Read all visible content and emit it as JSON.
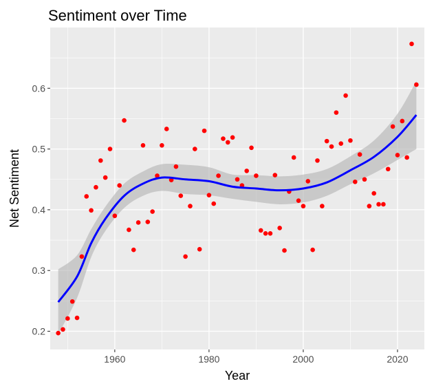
{
  "chart_data": {
    "type": "scatter",
    "title": "Sentiment over Time",
    "xlabel": "Year",
    "ylabel": "Net Sentiment",
    "xlim": [
      1946.3,
      2025.7
    ],
    "ylim": [
      0.17,
      0.7
    ],
    "x_ticks": [
      1960,
      1980,
      2000,
      2020
    ],
    "y_ticks": [
      0.2,
      0.3,
      0.4,
      0.5,
      0.6
    ],
    "x_tick_labels": [
      "1960",
      "1980",
      "2000",
      "2020"
    ],
    "y_tick_labels": [
      "0.2",
      "0.3",
      "0.4",
      "0.5",
      "0.6"
    ],
    "grid": true,
    "colors": {
      "points": "#ff0000",
      "smooth_line": "#0000ff",
      "confidence_band": "#b3b3b3",
      "panel_background": "#ebebeb",
      "grid": "#ffffff"
    },
    "points": [
      {
        "x": 1948,
        "y": 0.197
      },
      {
        "x": 1949,
        "y": 0.203
      },
      {
        "x": 1950,
        "y": 0.221
      },
      {
        "x": 1951,
        "y": 0.249
      },
      {
        "x": 1952,
        "y": 0.222
      },
      {
        "x": 1953,
        "y": 0.323
      },
      {
        "x": 1954,
        "y": 0.422
      },
      {
        "x": 1955,
        "y": 0.399
      },
      {
        "x": 1956,
        "y": 0.437
      },
      {
        "x": 1957,
        "y": 0.481
      },
      {
        "x": 1958,
        "y": 0.453
      },
      {
        "x": 1959,
        "y": 0.5
      },
      {
        "x": 1960,
        "y": 0.39
      },
      {
        "x": 1961,
        "y": 0.44
      },
      {
        "x": 1962,
        "y": 0.547
      },
      {
        "x": 1963,
        "y": 0.367
      },
      {
        "x": 1964,
        "y": 0.334
      },
      {
        "x": 1965,
        "y": 0.379
      },
      {
        "x": 1966,
        "y": 0.506
      },
      {
        "x": 1967,
        "y": 0.38
      },
      {
        "x": 1968,
        "y": 0.397
      },
      {
        "x": 1969,
        "y": 0.456
      },
      {
        "x": 1970,
        "y": 0.506
      },
      {
        "x": 1971,
        "y": 0.533
      },
      {
        "x": 1972,
        "y": 0.449
      },
      {
        "x": 1973,
        "y": 0.471
      },
      {
        "x": 1974,
        "y": 0.423
      },
      {
        "x": 1975,
        "y": 0.323
      },
      {
        "x": 1976,
        "y": 0.406
      },
      {
        "x": 1977,
        "y": 0.5
      },
      {
        "x": 1978,
        "y": 0.335
      },
      {
        "x": 1979,
        "y": 0.53
      },
      {
        "x": 1980,
        "y": 0.424
      },
      {
        "x": 1981,
        "y": 0.41
      },
      {
        "x": 1982,
        "y": 0.456
      },
      {
        "x": 1983,
        "y": 0.517
      },
      {
        "x": 1984,
        "y": 0.511
      },
      {
        "x": 1985,
        "y": 0.519
      },
      {
        "x": 1986,
        "y": 0.45
      },
      {
        "x": 1987,
        "y": 0.44
      },
      {
        "x": 1988,
        "y": 0.464
      },
      {
        "x": 1989,
        "y": 0.502
      },
      {
        "x": 1990,
        "y": 0.456
      },
      {
        "x": 1991,
        "y": 0.366
      },
      {
        "x": 1992,
        "y": 0.361
      },
      {
        "x": 1993,
        "y": 0.361
      },
      {
        "x": 1994,
        "y": 0.457
      },
      {
        "x": 1995,
        "y": 0.37
      },
      {
        "x": 1996,
        "y": 0.333
      },
      {
        "x": 1997,
        "y": 0.43
      },
      {
        "x": 1998,
        "y": 0.486
      },
      {
        "x": 1999,
        "y": 0.415
      },
      {
        "x": 2000,
        "y": 0.406
      },
      {
        "x": 2001,
        "y": 0.447
      },
      {
        "x": 2002,
        "y": 0.334
      },
      {
        "x": 2003,
        "y": 0.481
      },
      {
        "x": 2004,
        "y": 0.406
      },
      {
        "x": 2005,
        "y": 0.513
      },
      {
        "x": 2006,
        "y": 0.504
      },
      {
        "x": 2007,
        "y": 0.56
      },
      {
        "x": 2008,
        "y": 0.509
      },
      {
        "x": 2009,
        "y": 0.588
      },
      {
        "x": 2010,
        "y": 0.514
      },
      {
        "x": 2011,
        "y": 0.446
      },
      {
        "x": 2012,
        "y": 0.491
      },
      {
        "x": 2013,
        "y": 0.45
      },
      {
        "x": 2014,
        "y": 0.406
      },
      {
        "x": 2015,
        "y": 0.427
      },
      {
        "x": 2016,
        "y": 0.409
      },
      {
        "x": 2017,
        "y": 0.409
      },
      {
        "x": 2018,
        "y": 0.467
      },
      {
        "x": 2019,
        "y": 0.537
      },
      {
        "x": 2020,
        "y": 0.49
      },
      {
        "x": 2021,
        "y": 0.546
      },
      {
        "x": 2022,
        "y": 0.486
      },
      {
        "x": 2023,
        "y": 0.673
      },
      {
        "x": 2024,
        "y": 0.606
      }
    ],
    "smooth_fit": [
      {
        "x": 1948,
        "y": 0.248,
        "lower": 0.195,
        "upper": 0.302
      },
      {
        "x": 1952,
        "y": 0.29,
        "lower": 0.255,
        "upper": 0.325
      },
      {
        "x": 1955,
        "y": 0.345,
        "lower": 0.322,
        "upper": 0.368
      },
      {
        "x": 1958,
        "y": 0.385,
        "lower": 0.365,
        "upper": 0.405
      },
      {
        "x": 1962,
        "y": 0.423,
        "lower": 0.403,
        "upper": 0.443
      },
      {
        "x": 1966,
        "y": 0.443,
        "lower": 0.423,
        "upper": 0.463
      },
      {
        "x": 1970,
        "y": 0.453,
        "lower": 0.431,
        "upper": 0.475
      },
      {
        "x": 1975,
        "y": 0.45,
        "lower": 0.426,
        "upper": 0.474
      },
      {
        "x": 1980,
        "y": 0.447,
        "lower": 0.424,
        "upper": 0.47
      },
      {
        "x": 1985,
        "y": 0.438,
        "lower": 0.418,
        "upper": 0.458
      },
      {
        "x": 1990,
        "y": 0.435,
        "lower": 0.413,
        "upper": 0.457
      },
      {
        "x": 1995,
        "y": 0.432,
        "lower": 0.409,
        "upper": 0.455
      },
      {
        "x": 2000,
        "y": 0.435,
        "lower": 0.412,
        "upper": 0.458
      },
      {
        "x": 2005,
        "y": 0.445,
        "lower": 0.423,
        "upper": 0.467
      },
      {
        "x": 2010,
        "y": 0.465,
        "lower": 0.442,
        "upper": 0.488
      },
      {
        "x": 2015,
        "y": 0.487,
        "lower": 0.46,
        "upper": 0.514
      },
      {
        "x": 2020,
        "y": 0.52,
        "lower": 0.482,
        "upper": 0.558
      },
      {
        "x": 2024,
        "y": 0.556,
        "lower": 0.5,
        "upper": 0.612
      }
    ]
  }
}
